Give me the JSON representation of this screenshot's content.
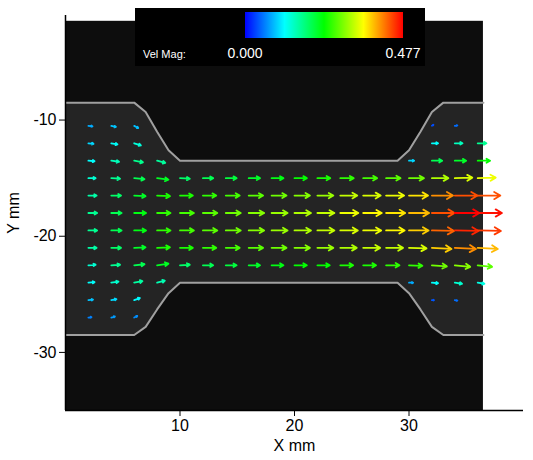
{
  "chart_data": {
    "type": "vector_field",
    "x_label": "X mm",
    "y_label": "Y mm",
    "xlim": [
      0,
      40
    ],
    "ylim": [
      -35,
      -1
    ],
    "xticks": [
      10,
      20,
      30
    ],
    "yticks": [
      -30,
      -20,
      -10
    ],
    "colorbar": {
      "label": "Vel Mag:",
      "range": [
        0,
        0.477
      ],
      "ticks": [
        {
          "value": 0,
          "label": "0.000"
        },
        {
          "value": 0.477,
          "label": "0.477"
        }
      ]
    },
    "image": {
      "x": [
        0,
        36.5
      ],
      "y": [
        -35,
        -1.5
      ]
    },
    "channel": {
      "x": [
        0,
        6,
        7,
        8,
        9,
        10,
        29,
        30,
        31,
        32,
        33,
        36.5
      ],
      "upper": [
        -8.5,
        -8.5,
        -9.3,
        -11,
        -12.6,
        -13.5,
        -13.5,
        -12.6,
        -11,
        -9.3,
        -8.5,
        -8.5
      ],
      "lower": [
        -28.5,
        -28.5,
        -27.8,
        -26.3,
        -24.9,
        -24,
        -24,
        -24.9,
        -26.3,
        -27.8,
        -28.5,
        -28.5
      ]
    },
    "vectors": [
      {
        "x": 2,
        "y": -10.5,
        "u": 0.08,
        "v": -0.01
      },
      {
        "x": 2,
        "y": -12,
        "u": 0.1,
        "v": -0.01
      },
      {
        "x": 2,
        "y": -13.5,
        "u": 0.12,
        "v": -0.01
      },
      {
        "x": 2,
        "y": -15,
        "u": 0.14,
        "v": 0
      },
      {
        "x": 2,
        "y": -16.5,
        "u": 0.16,
        "v": 0
      },
      {
        "x": 2,
        "y": -18,
        "u": 0.17,
        "v": 0
      },
      {
        "x": 2,
        "y": -19.5,
        "u": 0.17,
        "v": 0
      },
      {
        "x": 2,
        "y": -21,
        "u": 0.16,
        "v": 0
      },
      {
        "x": 2,
        "y": -22.5,
        "u": 0.14,
        "v": 0.01
      },
      {
        "x": 2,
        "y": -24,
        "u": 0.12,
        "v": 0.01
      },
      {
        "x": 2,
        "y": -25.5,
        "u": 0.09,
        "v": 0.01
      },
      {
        "x": 2,
        "y": -27,
        "u": 0.06,
        "v": 0.01
      },
      {
        "x": 4,
        "y": -10.5,
        "u": 0.09,
        "v": -0.02
      },
      {
        "x": 4,
        "y": -12,
        "u": 0.12,
        "v": -0.02
      },
      {
        "x": 4,
        "y": -13.5,
        "u": 0.15,
        "v": -0.02
      },
      {
        "x": 4,
        "y": -15,
        "u": 0.17,
        "v": -0.01
      },
      {
        "x": 4,
        "y": -16.5,
        "u": 0.19,
        "v": 0
      },
      {
        "x": 4,
        "y": -18,
        "u": 0.2,
        "v": 0
      },
      {
        "x": 4,
        "y": -19.5,
        "u": 0.2,
        "v": 0
      },
      {
        "x": 4,
        "y": -21,
        "u": 0.19,
        "v": 0
      },
      {
        "x": 4,
        "y": -22.5,
        "u": 0.17,
        "v": 0.01
      },
      {
        "x": 4,
        "y": -24,
        "u": 0.14,
        "v": 0.02
      },
      {
        "x": 4,
        "y": -25.5,
        "u": 0.1,
        "v": 0.02
      },
      {
        "x": 4,
        "y": -27,
        "u": 0.07,
        "v": 0.02
      },
      {
        "x": 6,
        "y": -10.5,
        "u": 0.08,
        "v": -0.04
      },
      {
        "x": 6,
        "y": -12,
        "u": 0.13,
        "v": -0.04
      },
      {
        "x": 6,
        "y": -13.5,
        "u": 0.17,
        "v": -0.03
      },
      {
        "x": 6,
        "y": -15,
        "u": 0.2,
        "v": -0.02
      },
      {
        "x": 6,
        "y": -16.5,
        "u": 0.22,
        "v": -0.01
      },
      {
        "x": 6,
        "y": -18,
        "u": 0.23,
        "v": 0
      },
      {
        "x": 6,
        "y": -19.5,
        "u": 0.23,
        "v": 0
      },
      {
        "x": 6,
        "y": -21,
        "u": 0.22,
        "v": 0.01
      },
      {
        "x": 6,
        "y": -22.5,
        "u": 0.2,
        "v": 0.02
      },
      {
        "x": 6,
        "y": -24,
        "u": 0.16,
        "v": 0.03
      },
      {
        "x": 6,
        "y": -25.5,
        "u": 0.11,
        "v": 0.04
      },
      {
        "x": 6,
        "y": -27,
        "u": 0.06,
        "v": 0.03
      },
      {
        "x": 8,
        "y": -13.5,
        "u": 0.16,
        "v": -0.04
      },
      {
        "x": 8,
        "y": -15,
        "u": 0.22,
        "v": -0.03
      },
      {
        "x": 8,
        "y": -16.5,
        "u": 0.25,
        "v": -0.01
      },
      {
        "x": 8,
        "y": -18,
        "u": 0.26,
        "v": 0
      },
      {
        "x": 8,
        "y": -19.5,
        "u": 0.26,
        "v": 0
      },
      {
        "x": 8,
        "y": -21,
        "u": 0.25,
        "v": 0.01
      },
      {
        "x": 8,
        "y": -22.5,
        "u": 0.22,
        "v": 0.03
      },
      {
        "x": 8,
        "y": -24,
        "u": 0.15,
        "v": 0.04
      },
      {
        "x": 10,
        "y": -15,
        "u": 0.19,
        "v": -0.01
      },
      {
        "x": 10,
        "y": -16.5,
        "u": 0.25,
        "v": 0
      },
      {
        "x": 10,
        "y": -18,
        "u": 0.27,
        "v": 0
      },
      {
        "x": 10,
        "y": -19.5,
        "u": 0.27,
        "v": 0
      },
      {
        "x": 10,
        "y": -21,
        "u": 0.25,
        "v": 0
      },
      {
        "x": 10,
        "y": -22.5,
        "u": 0.19,
        "v": 0.01
      },
      {
        "x": 12,
        "y": -15,
        "u": 0.2,
        "v": 0
      },
      {
        "x": 12,
        "y": -16.5,
        "u": 0.26,
        "v": 0
      },
      {
        "x": 12,
        "y": -18,
        "u": 0.28,
        "v": 0
      },
      {
        "x": 12,
        "y": -19.5,
        "u": 0.28,
        "v": 0
      },
      {
        "x": 12,
        "y": -21,
        "u": 0.26,
        "v": 0
      },
      {
        "x": 12,
        "y": -22.5,
        "u": 0.2,
        "v": 0
      },
      {
        "x": 14,
        "y": -15,
        "u": 0.21,
        "v": 0
      },
      {
        "x": 14,
        "y": -16.5,
        "u": 0.27,
        "v": 0
      },
      {
        "x": 14,
        "y": -18,
        "u": 0.29,
        "v": 0
      },
      {
        "x": 14,
        "y": -19.5,
        "u": 0.29,
        "v": 0
      },
      {
        "x": 14,
        "y": -21,
        "u": 0.27,
        "v": 0
      },
      {
        "x": 14,
        "y": -22.5,
        "u": 0.21,
        "v": 0
      },
      {
        "x": 16,
        "y": -15,
        "u": 0.22,
        "v": 0
      },
      {
        "x": 16,
        "y": -16.5,
        "u": 0.28,
        "v": 0
      },
      {
        "x": 16,
        "y": -18,
        "u": 0.3,
        "v": 0
      },
      {
        "x": 16,
        "y": -19.5,
        "u": 0.3,
        "v": 0
      },
      {
        "x": 16,
        "y": -21,
        "u": 0.28,
        "v": 0
      },
      {
        "x": 16,
        "y": -22.5,
        "u": 0.22,
        "v": 0
      },
      {
        "x": 18,
        "y": -15,
        "u": 0.23,
        "v": 0
      },
      {
        "x": 18,
        "y": -16.5,
        "u": 0.29,
        "v": 0
      },
      {
        "x": 18,
        "y": -18,
        "u": 0.31,
        "v": 0
      },
      {
        "x": 18,
        "y": -19.5,
        "u": 0.31,
        "v": 0
      },
      {
        "x": 18,
        "y": -21,
        "u": 0.29,
        "v": 0
      },
      {
        "x": 18,
        "y": -22.5,
        "u": 0.23,
        "v": 0
      },
      {
        "x": 20,
        "y": -15,
        "u": 0.24,
        "v": 0
      },
      {
        "x": 20,
        "y": -16.5,
        "u": 0.3,
        "v": 0
      },
      {
        "x": 20,
        "y": -18,
        "u": 0.32,
        "v": 0
      },
      {
        "x": 20,
        "y": -19.5,
        "u": 0.32,
        "v": 0
      },
      {
        "x": 20,
        "y": -21,
        "u": 0.3,
        "v": 0
      },
      {
        "x": 20,
        "y": -22.5,
        "u": 0.24,
        "v": 0
      },
      {
        "x": 22,
        "y": -15,
        "u": 0.25,
        "v": 0
      },
      {
        "x": 22,
        "y": -16.5,
        "u": 0.31,
        "v": 0
      },
      {
        "x": 22,
        "y": -18,
        "u": 0.33,
        "v": 0
      },
      {
        "x": 22,
        "y": -19.5,
        "u": 0.33,
        "v": 0
      },
      {
        "x": 22,
        "y": -21,
        "u": 0.31,
        "v": 0
      },
      {
        "x": 22,
        "y": -22.5,
        "u": 0.24,
        "v": 0
      },
      {
        "x": 24,
        "y": -15,
        "u": 0.26,
        "v": 0
      },
      {
        "x": 24,
        "y": -16.5,
        "u": 0.33,
        "v": 0
      },
      {
        "x": 24,
        "y": -18,
        "u": 0.35,
        "v": 0
      },
      {
        "x": 24,
        "y": -19.5,
        "u": 0.34,
        "v": 0
      },
      {
        "x": 24,
        "y": -21,
        "u": 0.32,
        "v": 0
      },
      {
        "x": 24,
        "y": -22.5,
        "u": 0.25,
        "v": 0
      },
      {
        "x": 26,
        "y": -15,
        "u": 0.27,
        "v": 0
      },
      {
        "x": 26,
        "y": -16.5,
        "u": 0.34,
        "v": 0
      },
      {
        "x": 26,
        "y": -18,
        "u": 0.36,
        "v": 0
      },
      {
        "x": 26,
        "y": -19.5,
        "u": 0.35,
        "v": 0
      },
      {
        "x": 26,
        "y": -21,
        "u": 0.33,
        "v": 0
      },
      {
        "x": 26,
        "y": -22.5,
        "u": 0.25,
        "v": 0
      },
      {
        "x": 28,
        "y": -15,
        "u": 0.28,
        "v": 0
      },
      {
        "x": 28,
        "y": -16.5,
        "u": 0.35,
        "v": 0
      },
      {
        "x": 28,
        "y": -18,
        "u": 0.37,
        "v": 0
      },
      {
        "x": 28,
        "y": -19.5,
        "u": 0.36,
        "v": 0
      },
      {
        "x": 28,
        "y": -21,
        "u": 0.33,
        "v": 0
      },
      {
        "x": 28,
        "y": -22.5,
        "u": 0.26,
        "v": 0
      },
      {
        "x": 30,
        "y": -13.5,
        "u": 0.1,
        "v": 0
      },
      {
        "x": 30,
        "y": -15,
        "u": 0.29,
        "v": 0
      },
      {
        "x": 30,
        "y": -16.5,
        "u": 0.37,
        "v": 0
      },
      {
        "x": 30,
        "y": -18,
        "u": 0.39,
        "v": 0
      },
      {
        "x": 30,
        "y": -19.5,
        "u": 0.38,
        "v": 0
      },
      {
        "x": 30,
        "y": -21,
        "u": 0.34,
        "v": -0.01
      },
      {
        "x": 30,
        "y": -22.5,
        "u": 0.26,
        "v": -0.01
      },
      {
        "x": 30,
        "y": -24,
        "u": 0.08,
        "v": 0
      },
      {
        "x": 32,
        "y": -10.5,
        "u": 0.03,
        "v": 0.02
      },
      {
        "x": 32,
        "y": -12,
        "u": 0.12,
        "v": 0
      },
      {
        "x": 32,
        "y": -13.5,
        "u": 0.2,
        "v": 0
      },
      {
        "x": 32,
        "y": -15,
        "u": 0.32,
        "v": 0
      },
      {
        "x": 32,
        "y": -16.5,
        "u": 0.41,
        "v": 0
      },
      {
        "x": 32,
        "y": -18,
        "u": 0.44,
        "v": 0
      },
      {
        "x": 32,
        "y": -19.5,
        "u": 0.43,
        "v": -0.01
      },
      {
        "x": 32,
        "y": -21,
        "u": 0.38,
        "v": -0.02
      },
      {
        "x": 32,
        "y": -22.5,
        "u": 0.29,
        "v": -0.02
      },
      {
        "x": 32,
        "y": -24,
        "u": 0.12,
        "v": -0.01
      },
      {
        "x": 32,
        "y": -25.5,
        "u": 0.04,
        "v": 0
      },
      {
        "x": 34,
        "y": -10.5,
        "u": 0.05,
        "v": 0.01
      },
      {
        "x": 34,
        "y": -12,
        "u": 0.15,
        "v": 0
      },
      {
        "x": 34,
        "y": -13.5,
        "u": 0.22,
        "v": 0
      },
      {
        "x": 34,
        "y": -15,
        "u": 0.34,
        "v": 0.01
      },
      {
        "x": 34,
        "y": -16.5,
        "u": 0.44,
        "v": 0
      },
      {
        "x": 34,
        "y": -18,
        "u": 0.477,
        "v": 0
      },
      {
        "x": 34,
        "y": -19.5,
        "u": 0.46,
        "v": -0.01
      },
      {
        "x": 34,
        "y": -21,
        "u": 0.41,
        "v": -0.02
      },
      {
        "x": 34,
        "y": -22.5,
        "u": 0.3,
        "v": -0.03
      },
      {
        "x": 34,
        "y": -24,
        "u": 0.14,
        "v": -0.02
      },
      {
        "x": 34,
        "y": -25.5,
        "u": 0.05,
        "v": -0.01
      },
      {
        "x": 36,
        "y": -12,
        "u": 0.17,
        "v": 0
      },
      {
        "x": 36,
        "y": -13.5,
        "u": 0.24,
        "v": 0
      },
      {
        "x": 36,
        "y": -15,
        "u": 0.35,
        "v": 0.01
      },
      {
        "x": 36,
        "y": -16.5,
        "u": 0.44,
        "v": 0
      },
      {
        "x": 36,
        "y": -18,
        "u": 0.47,
        "v": 0
      },
      {
        "x": 36,
        "y": -19.5,
        "u": 0.45,
        "v": -0.01
      },
      {
        "x": 36,
        "y": -21,
        "u": 0.39,
        "v": -0.02
      },
      {
        "x": 36,
        "y": -22.5,
        "u": 0.28,
        "v": -0.03
      },
      {
        "x": 36,
        "y": -24,
        "u": 0.13,
        "v": -0.02
      }
    ]
  }
}
